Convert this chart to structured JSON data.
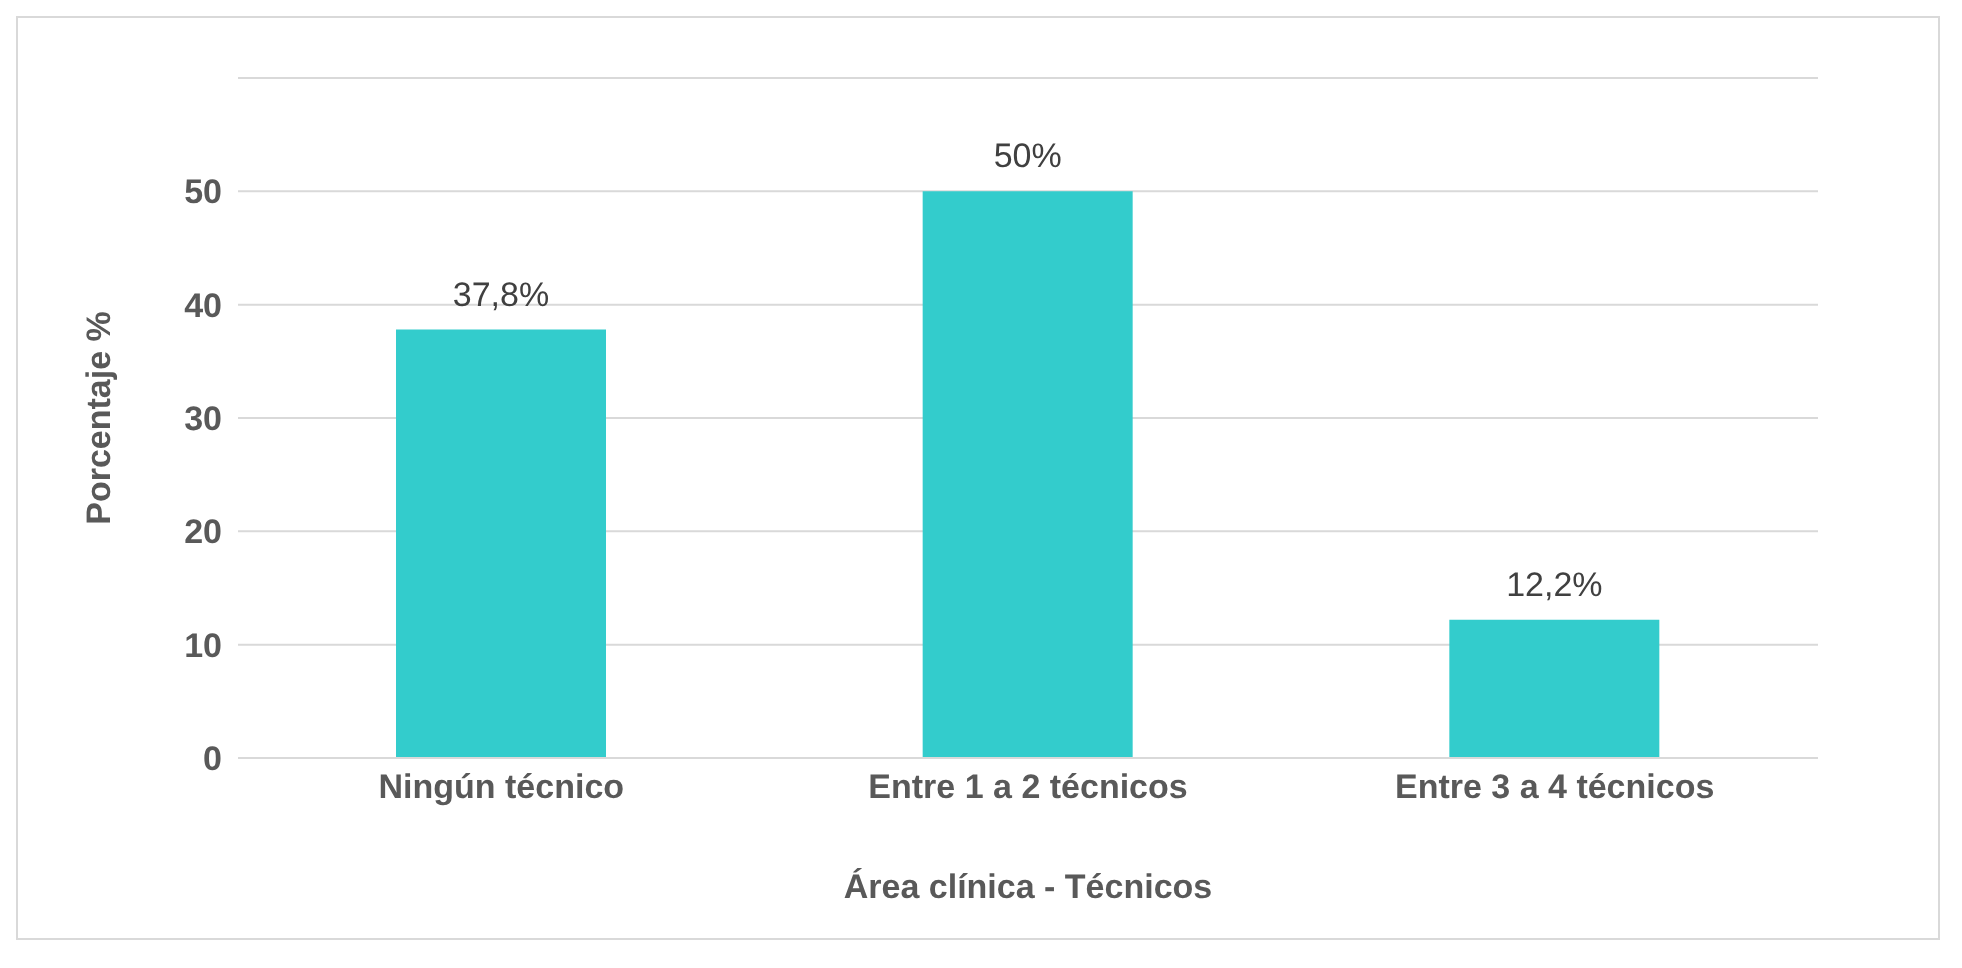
{
  "chart_data": {
    "type": "bar",
    "xlabel": "Área clínica - Técnicos",
    "ylabel": "Porcentaje %",
    "categories": [
      "Ningún técnico",
      "Entre  1 a 2 técnicos",
      "Entre 3 a 4 técnicos"
    ],
    "values": [
      37.8,
      50,
      12.2
    ],
    "value_labels": [
      "37,8%",
      "50%",
      "12,2%"
    ],
    "color": "#33cccc",
    "ylim": [
      0,
      60
    ],
    "yticks": [
      0,
      10,
      20,
      30,
      40,
      50,
      {
        "value": 60,
        "label": null
      }
    ],
    "grid": "y"
  }
}
